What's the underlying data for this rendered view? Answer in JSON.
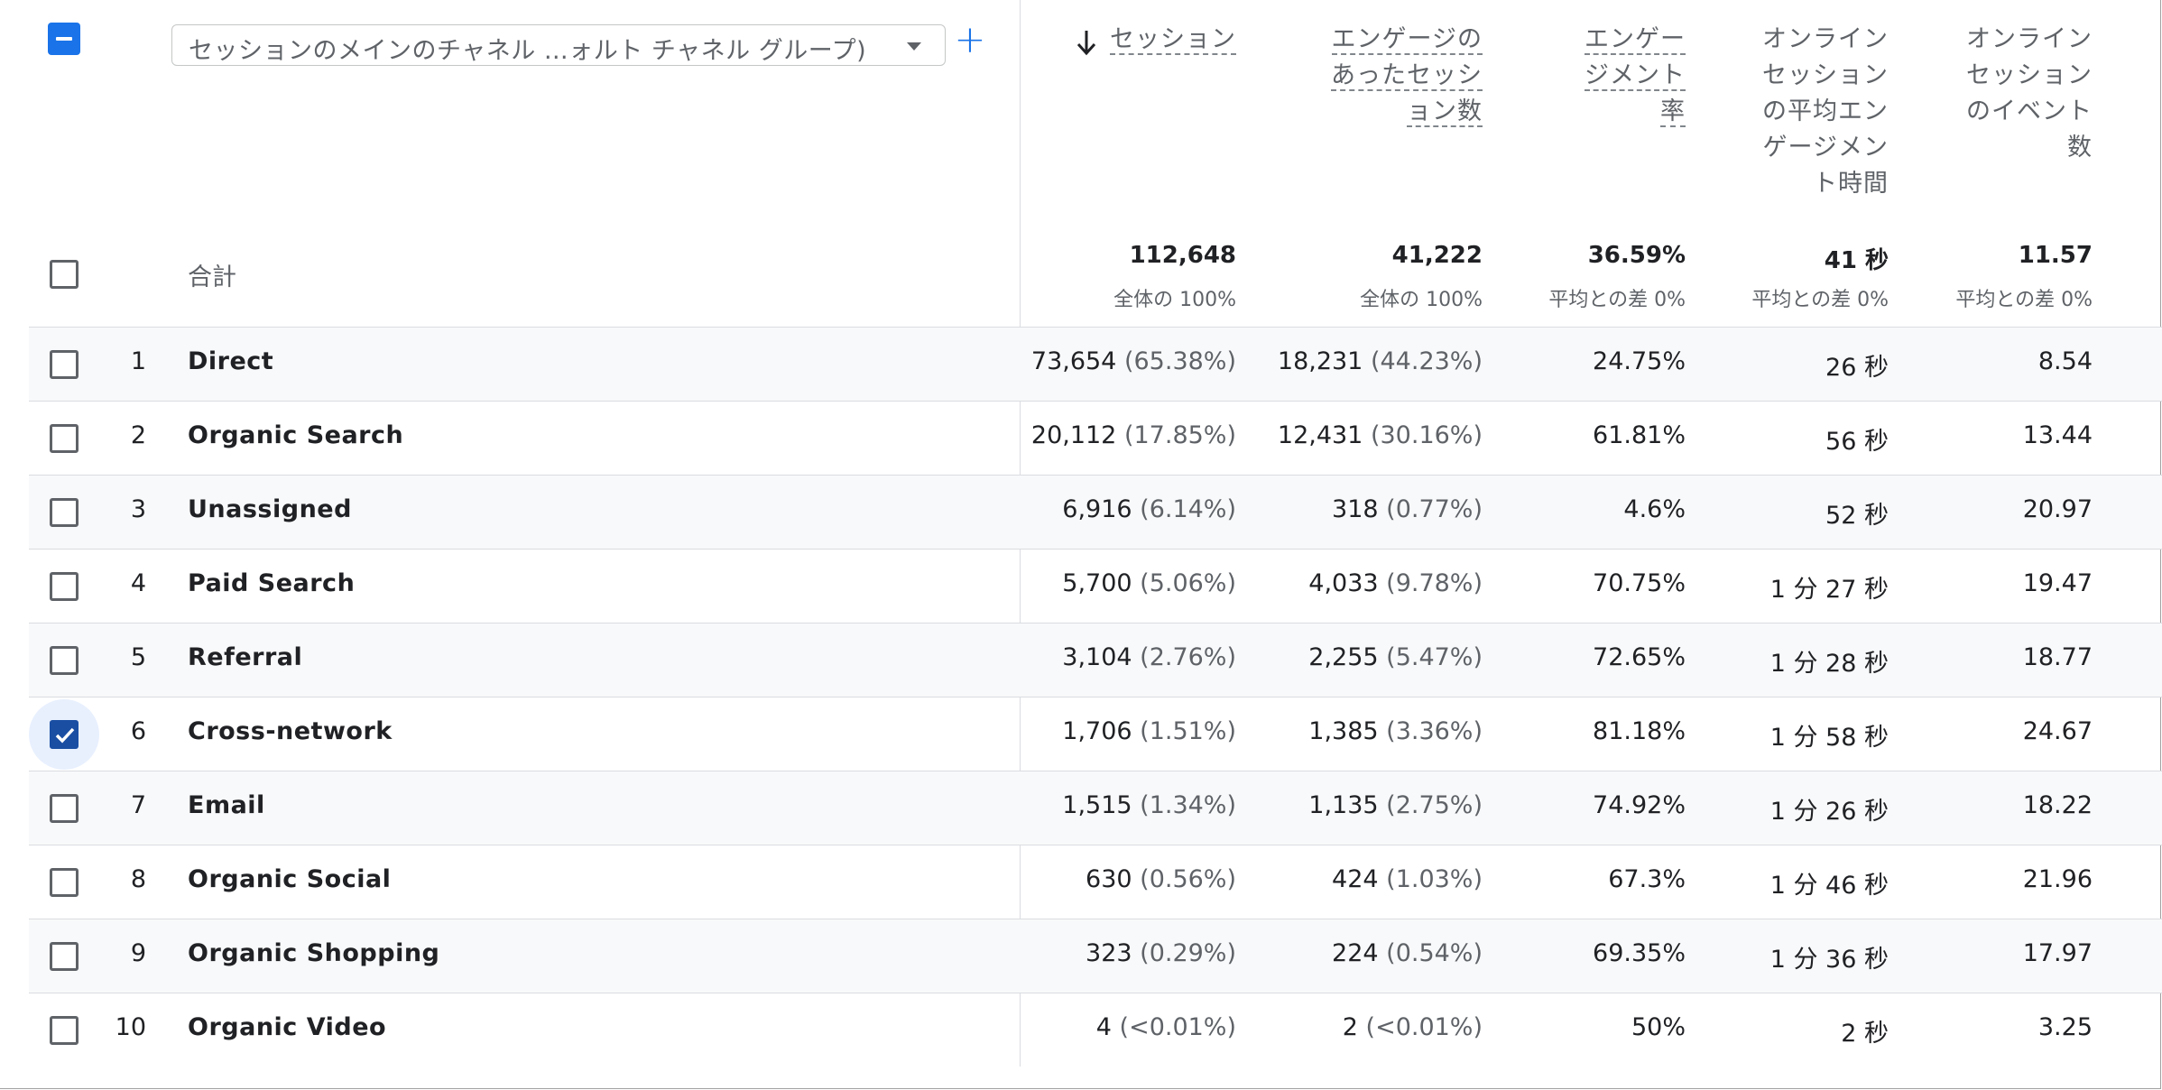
{
  "dimension": {
    "selector_label": "セッションのメインのチャネル …ォルト チャネル グループ)",
    "add_label": "+"
  },
  "columns": [
    {
      "lines": [
        "セッション"
      ],
      "sorted": true
    },
    {
      "lines": [
        "エンゲージの",
        "あったセッシ",
        "ョン数"
      ]
    },
    {
      "lines": [
        "エンゲー",
        "ジメント",
        "率"
      ]
    },
    {
      "lines": [
        "オンライン",
        "セッション",
        "の平均エン",
        "ゲージメン",
        "ト時間"
      ]
    },
    {
      "lines": [
        "オンライン",
        "セッション",
        "のイベント",
        "数"
      ]
    }
  ],
  "totals": {
    "label": "合計",
    "values": [
      "112,648",
      "41,222",
      "36.59%",
      "41 秒",
      "11.57"
    ],
    "subs": [
      "全体の 100%",
      "全体の 100%",
      "平均との差 0%",
      "平均との差 0%",
      "平均との差 0%"
    ]
  },
  "rows": [
    {
      "index": "1",
      "name": "Direct",
      "sessions": "73,654",
      "sessions_pct": "(65.38%)",
      "engaged": "18,231",
      "engaged_pct": "(44.23%)",
      "rate": "24.75%",
      "avg_time": "26 秒",
      "events": "8.54",
      "checked": false
    },
    {
      "index": "2",
      "name": "Organic Search",
      "sessions": "20,112",
      "sessions_pct": "(17.85%)",
      "engaged": "12,431",
      "engaged_pct": "(30.16%)",
      "rate": "61.81%",
      "avg_time": "56 秒",
      "events": "13.44",
      "checked": false
    },
    {
      "index": "3",
      "name": "Unassigned",
      "sessions": "6,916",
      "sessions_pct": "(6.14%)",
      "engaged": "318",
      "engaged_pct": "(0.77%)",
      "rate": "4.6%",
      "avg_time": "52 秒",
      "events": "20.97",
      "checked": false
    },
    {
      "index": "4",
      "name": "Paid Search",
      "sessions": "5,700",
      "sessions_pct": "(5.06%)",
      "engaged": "4,033",
      "engaged_pct": "(9.78%)",
      "rate": "70.75%",
      "avg_time": "1 分 27 秒",
      "events": "19.47",
      "checked": false
    },
    {
      "index": "5",
      "name": "Referral",
      "sessions": "3,104",
      "sessions_pct": "(2.76%)",
      "engaged": "2,255",
      "engaged_pct": "(5.47%)",
      "rate": "72.65%",
      "avg_time": "1 分 28 秒",
      "events": "18.77",
      "checked": false
    },
    {
      "index": "6",
      "name": "Cross-network",
      "sessions": "1,706",
      "sessions_pct": "(1.51%)",
      "engaged": "1,385",
      "engaged_pct": "(3.36%)",
      "rate": "81.18%",
      "avg_time": "1 分 58 秒",
      "events": "24.67",
      "checked": true
    },
    {
      "index": "7",
      "name": "Email",
      "sessions": "1,515",
      "sessions_pct": "(1.34%)",
      "engaged": "1,135",
      "engaged_pct": "(2.75%)",
      "rate": "74.92%",
      "avg_time": "1 分 26 秒",
      "events": "18.22",
      "checked": false
    },
    {
      "index": "8",
      "name": "Organic Social",
      "sessions": "630",
      "sessions_pct": "(0.56%)",
      "engaged": "424",
      "engaged_pct": "(1.03%)",
      "rate": "67.3%",
      "avg_time": "1 分 46 秒",
      "events": "21.96",
      "checked": false
    },
    {
      "index": "9",
      "name": "Organic Shopping",
      "sessions": "323",
      "sessions_pct": "(0.29%)",
      "engaged": "224",
      "engaged_pct": "(0.54%)",
      "rate": "69.35%",
      "avg_time": "1 分 36 秒",
      "events": "17.97",
      "checked": false
    },
    {
      "index": "10",
      "name": "Organic Video",
      "sessions": "4",
      "sessions_pct": "(<0.01%)",
      "engaged": "2",
      "engaged_pct": "(<0.01%)",
      "rate": "50%",
      "avg_time": "2 秒",
      "events": "3.25",
      "checked": false
    }
  ],
  "colors": {
    "accent": "#1a73e8",
    "checked": "#1a4ea3",
    "row_alt": "#f8f9fa",
    "border": "#dadce0"
  }
}
